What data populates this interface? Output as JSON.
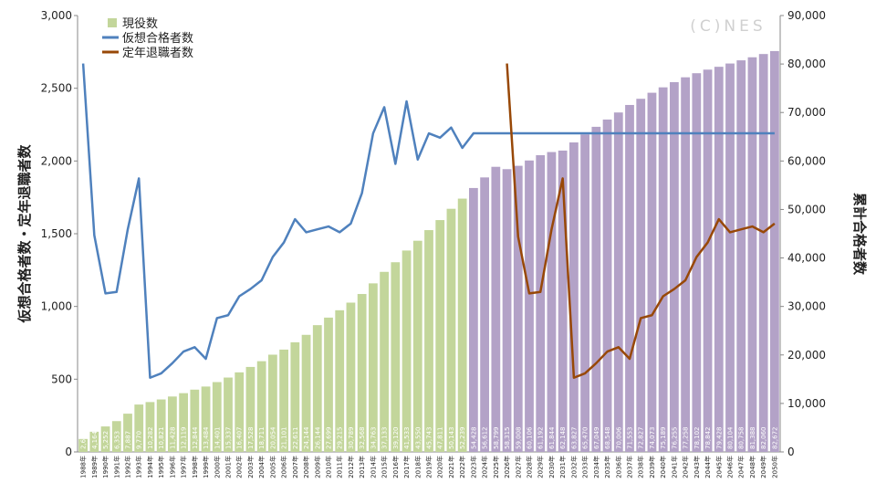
{
  "chart_data": {
    "type": "bar_line",
    "watermark": "(C)NES",
    "ylabel": "仮想合格者数・定年退職者数",
    "y2label": "累計合格者数",
    "categories": [
      "1988年",
      "1989年",
      "1990年",
      "1991年",
      "1992年",
      "1993年",
      "1994年",
      "1995年",
      "1996年",
      "1997年",
      "1998年",
      "1999年",
      "2000年",
      "2001年",
      "2002年",
      "2003年",
      "2004年",
      "2005年",
      "2006年",
      "2007年",
      "2008年",
      "2009年",
      "2010年",
      "2011年",
      "2012年",
      "2013年",
      "2014年",
      "2015年",
      "2016年",
      "2017年",
      "2018年",
      "2019年",
      "2020年",
      "2021年",
      "2022年",
      "2023年",
      "2024年",
      "2025年",
      "2026年",
      "2027年",
      "2028年",
      "2029年",
      "2030年",
      "2031年",
      "2032年",
      "2033年",
      "2034年",
      "2035年",
      "2036年",
      "2037年",
      "2038年",
      "2039年",
      "2040年",
      "2041年",
      "2042年",
      "2043年",
      "2044年",
      "2045年",
      "2046年",
      "2047年",
      "2048年",
      "2049年",
      "2050年"
    ],
    "series": [
      {
        "name": "現役数",
        "kind": "bar",
        "axis": "y2",
        "color": "#c3d69b",
        "colors": [
          "#c3d69b",
          "#c3d69b",
          "#c3d69b",
          "#c3d69b",
          "#c3d69b",
          "#c3d69b",
          "#c3d69b",
          "#c3d69b",
          "#c3d69b",
          "#c3d69b",
          "#c3d69b",
          "#c3d69b",
          "#c3d69b",
          "#c3d69b",
          "#c3d69b",
          "#c3d69b",
          "#c3d69b",
          "#c3d69b",
          "#c3d69b",
          "#c3d69b",
          "#c3d69b",
          "#c3d69b",
          "#c3d69b",
          "#c3d69b",
          "#c3d69b",
          "#c3d69b",
          "#c3d69b",
          "#c3d69b",
          "#c3d69b",
          "#c3d69b",
          "#c3d69b",
          "#c3d69b",
          "#c3d69b",
          "#c3d69b",
          "#c3d69b",
          "#b3a2c7",
          "#b3a2c7",
          "#b3a2c7",
          "#b3a2c7",
          "#b3a2c7",
          "#b3a2c7",
          "#b3a2c7",
          "#b3a2c7",
          "#b3a2c7",
          "#b3a2c7",
          "#b3a2c7",
          "#b3a2c7",
          "#b3a2c7",
          "#b3a2c7",
          "#b3a2c7",
          "#b3a2c7",
          "#b3a2c7",
          "#b3a2c7",
          "#b3a2c7",
          "#b3a2c7",
          "#b3a2c7",
          "#b3a2c7",
          "#b3a2c7",
          "#b3a2c7",
          "#b3a2c7",
          "#b3a2c7",
          "#b3a2c7",
          "#b3a2c7"
        ],
        "values": [
          2670,
          4164,
          5252,
          6353,
          7887,
          9770,
          10282,
          10821,
          11428,
          12119,
          12844,
          13484,
          14401,
          15337,
          16407,
          17528,
          18711,
          20054,
          21101,
          22611,
          24144,
          26144,
          27699,
          29215,
          30789,
          32568,
          34763,
          37133,
          39120,
          41533,
          43550,
          45743,
          47811,
          50143,
          52239,
          54428,
          56612,
          58799,
          58315,
          59008,
          60106,
          61192,
          61844,
          62148,
          63827,
          65470,
          67049,
          68548,
          70006,
          71553,
          72827,
          74073,
          75189,
          76255,
          77258,
          78102,
          78842,
          79428,
          80104,
          80758,
          81388,
          82060,
          82672
        ],
        "value_labels": [
          "2,670",
          "4,164",
          "5,252",
          "6,353",
          "7,887",
          "9,770",
          "10,282",
          "10,821",
          "11,428",
          "12,119",
          "12,844",
          "13,484",
          "14,401",
          "15,337",
          "16,407",
          "17,528",
          "18,711",
          "20,054",
          "21,101",
          "22,611",
          "24,144",
          "26,144",
          "27,699",
          "29,215",
          "30,789",
          "32,568",
          "34,763",
          "37,133",
          "39,120",
          "41,533",
          "43,550",
          "45,743",
          "47,811",
          "50,143",
          "52,239",
          "54,428",
          "56,612",
          "58,799",
          "58,315",
          "59,008",
          "60,106",
          "61,192",
          "61,844",
          "62,148",
          "63,827",
          "65,470",
          "67,049",
          "68,548",
          "70,006",
          "71,553",
          "72,827",
          "74,073",
          "75,189",
          "76,255",
          "77,258",
          "78,102",
          "78,842",
          "79,428",
          "80,104",
          "80,758",
          "81,388",
          "82,060",
          "82,672"
        ]
      },
      {
        "name": "仮想合格者数",
        "kind": "line",
        "axis": "y",
        "color": "#4f81bd",
        "values": [
          2670,
          1490,
          1090,
          1100,
          1530,
          1880,
          510,
          540,
          610,
          690,
          720,
          640,
          920,
          940,
          1070,
          1120,
          1180,
          1340,
          1440,
          1600,
          1510,
          1530,
          1550,
          1510,
          1570,
          1780,
          2190,
          2370,
          1980,
          2410,
          2010,
          2190,
          2160,
          2230,
          2090,
          2190,
          2190,
          2190,
          2190,
          2190,
          2190,
          2190,
          2190,
          2190,
          2190,
          2190,
          2190,
          2190,
          2190,
          2190,
          2190,
          2190,
          2190,
          2190,
          2190,
          2190,
          2190,
          2190,
          2190,
          2190,
          2190,
          2190,
          2190
        ]
      },
      {
        "name": "定年退職者数",
        "kind": "line",
        "axis": "y",
        "color": "#984807",
        "values": [
          null,
          null,
          null,
          null,
          null,
          null,
          null,
          null,
          null,
          null,
          null,
          null,
          null,
          null,
          null,
          null,
          null,
          null,
          null,
          null,
          null,
          null,
          null,
          null,
          null,
          null,
          null,
          null,
          null,
          null,
          null,
          null,
          null,
          null,
          null,
          null,
          null,
          null,
          2670,
          1480,
          1090,
          1100,
          1530,
          1880,
          510,
          540,
          610,
          690,
          720,
          640,
          920,
          940,
          1070,
          1120,
          1180,
          1340,
          1440,
          1600,
          1510,
          1530,
          1550,
          1510,
          1570
        ]
      }
    ],
    "ylim": [
      0,
      3000
    ],
    "yticks": [
      0,
      500,
      {
        "value": 1000,
        "label": "1,000"
      },
      {
        "value": 1500,
        "label": "1,500"
      },
      {
        "value": 2000,
        "label": "2,000"
      },
      {
        "value": 2500,
        "label": "2,500"
      },
      {
        "value": 3000,
        "label": "3,000"
      }
    ],
    "y2lim": [
      0,
      90000
    ],
    "y2ticks": [
      0,
      {
        "value": 10000,
        "label": "10,000"
      },
      {
        "value": 20000,
        "label": "20,000"
      },
      {
        "value": 30000,
        "label": "30,000"
      },
      {
        "value": 40000,
        "label": "40,000"
      },
      {
        "value": 50000,
        "label": "50,000"
      },
      {
        "value": 60000,
        "label": "60,000"
      },
      {
        "value": 70000,
        "label": "70,000"
      },
      {
        "value": 80000,
        "label": "80,000"
      },
      {
        "value": 90000,
        "label": "90,000"
      }
    ],
    "legend": "top-left"
  }
}
